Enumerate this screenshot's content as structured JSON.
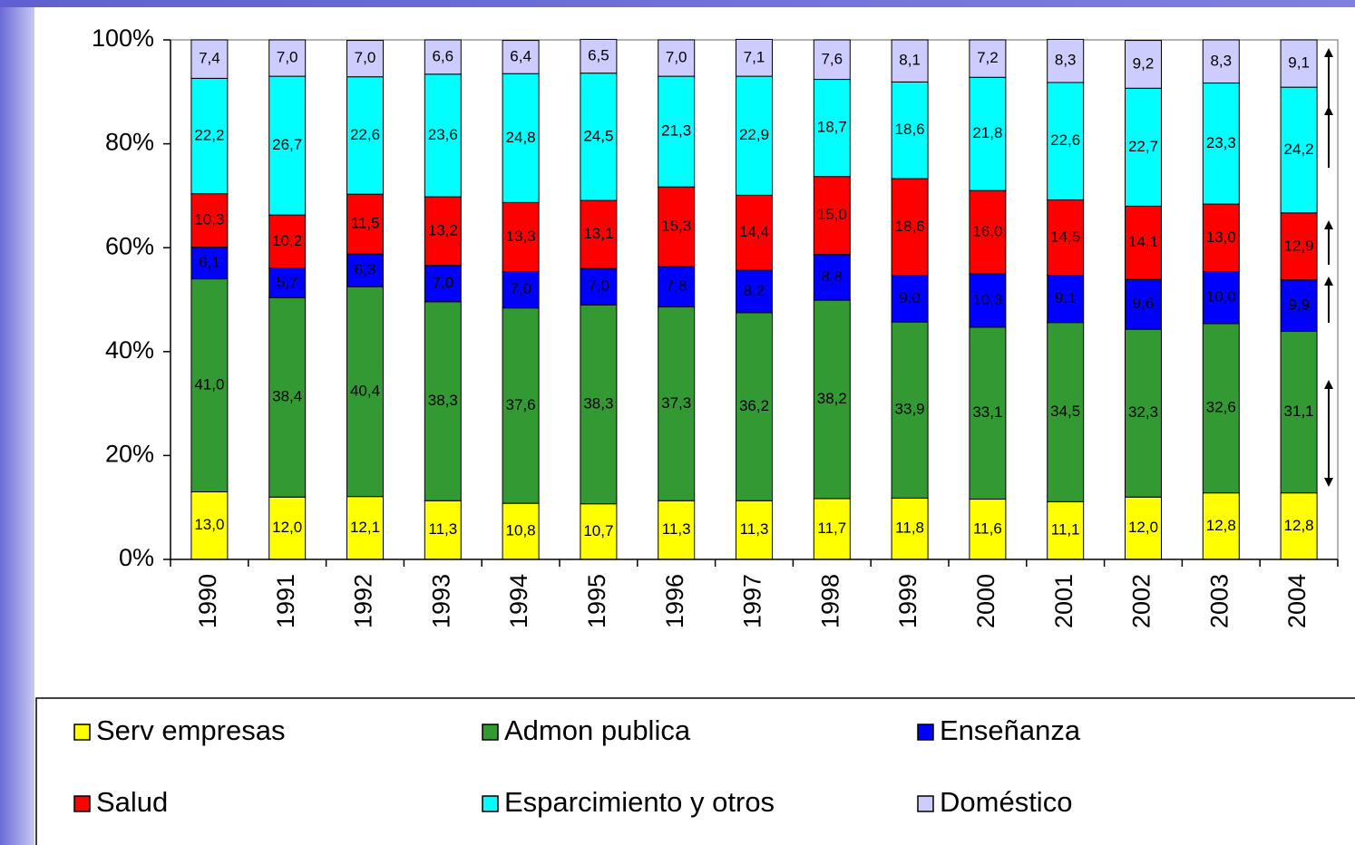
{
  "chart_data": {
    "type": "bar",
    "stacked": true,
    "categories": [
      "1990",
      "1991",
      "1992",
      "1993",
      "1994",
      "1995",
      "1996",
      "1997",
      "1998",
      "1999",
      "2000",
      "2001",
      "2002",
      "2003",
      "2004"
    ],
    "series": [
      {
        "name": "Serv empresas",
        "color": "#ffff00",
        "values": [
          13.0,
          12.0,
          12.1,
          11.3,
          10.8,
          10.7,
          11.3,
          11.3,
          11.7,
          11.8,
          11.6,
          11.1,
          12.0,
          12.8,
          12.8
        ],
        "value_labels": [
          "13,0",
          "12,0",
          "12,1",
          "11,3",
          "10,8",
          "10,7",
          "11,3",
          "11,3",
          "11,7",
          "11,8",
          "11,6",
          "11,1",
          "12,0",
          "12,8",
          "12,8"
        ]
      },
      {
        "name": "Admon publica",
        "color": "#339933",
        "values": [
          41.0,
          38.4,
          40.4,
          38.3,
          37.6,
          38.3,
          37.3,
          36.2,
          38.2,
          33.9,
          33.1,
          34.5,
          32.3,
          32.6,
          31.1
        ],
        "value_labels": [
          "41,0",
          "38,4",
          "40,4",
          "38,3",
          "37,6",
          "38,3",
          "37,3",
          "36,2",
          "38,2",
          "33,9",
          "33,1",
          "34,5",
          "32,3",
          "32,6",
          "31,1"
        ]
      },
      {
        "name": "Enseñanza",
        "color": "#0000ff",
        "values": [
          6.1,
          5.7,
          6.3,
          7.0,
          7.0,
          7.0,
          7.8,
          8.2,
          8.8,
          9.0,
          10.3,
          9.1,
          9.6,
          10.0,
          9.9
        ],
        "value_labels": [
          "6,1",
          "5,7",
          "6,3",
          "7,0",
          "7,0",
          "7,0",
          "7,8",
          "8,2",
          "8,8",
          "9,0",
          "10,3",
          "9,1",
          "9,6",
          "10,0",
          "9,9"
        ]
      },
      {
        "name": "Salud",
        "color": "#ff0000",
        "values": [
          10.3,
          10.2,
          11.5,
          13.2,
          13.3,
          13.1,
          15.3,
          14.4,
          15.0,
          18.6,
          16.0,
          14.5,
          14.1,
          13.0,
          12.9
        ],
        "value_labels": [
          "10,3",
          "10,2",
          "11,5",
          "13,2",
          "13,3",
          "13,1",
          "15,3",
          "14,4",
          "15,0",
          "18,6",
          "16,0",
          "14,5",
          "14,1",
          "13,0",
          "12,9"
        ]
      },
      {
        "name": "Esparcimiento y otros",
        "color": "#00ffff",
        "values": [
          22.2,
          26.7,
          22.6,
          23.6,
          24.8,
          24.5,
          21.3,
          22.9,
          18.7,
          18.6,
          21.8,
          22.6,
          22.7,
          23.3,
          24.2
        ],
        "value_labels": [
          "22,2",
          "26,7",
          "22,6",
          "23,6",
          "24,8",
          "24,5",
          "21,3",
          "22,9",
          "18,7",
          "18,6",
          "21,8",
          "22,6",
          "22,7",
          "23,3",
          "24,2"
        ]
      },
      {
        "name": "Doméstico",
        "color": "#ccccff",
        "values": [
          7.4,
          7.0,
          7.0,
          6.6,
          6.4,
          6.5,
          7.0,
          7.1,
          7.6,
          8.1,
          7.2,
          8.3,
          9.2,
          8.3,
          9.1
        ],
        "value_labels": [
          "7,4",
          "7,0",
          "7,0",
          "6,6",
          "6,4",
          "6,5",
          "7,0",
          "7,1",
          "7,6",
          "8,1",
          "7,2",
          "8,3",
          "9,2",
          "8,3",
          "9,1"
        ]
      }
    ],
    "ylim": [
      0,
      100
    ],
    "yticks": [
      {
        "value": 0,
        "label": "0%"
      },
      {
        "value": 20,
        "label": "20%"
      },
      {
        "value": 40,
        "label": "40%"
      },
      {
        "value": 60,
        "label": "60%"
      },
      {
        "value": 80,
        "label": "80%"
      },
      {
        "value": 100,
        "label": "100%"
      }
    ],
    "grid": false,
    "legend": "bottom"
  }
}
